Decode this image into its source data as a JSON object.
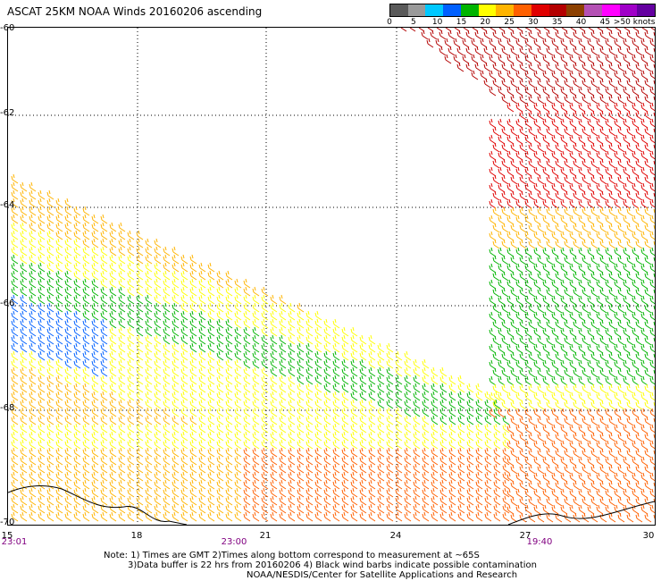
{
  "title": "ASCAT 25KM NOAA Winds 20160206 ascending",
  "legend": {
    "colors": [
      "#5a5a5a",
      "#9a9a9a",
      "#00c8ff",
      "#0060ff",
      "#00b400",
      "#ffff00",
      "#ffb400",
      "#ff6000",
      "#e00000",
      "#b40000",
      "#8c4000",
      "#b450b4",
      "#ff00ff",
      "#a000c8",
      "#6400a0"
    ],
    "labels": [
      "0",
      "5",
      "10",
      "15",
      "20",
      "25",
      "30",
      "35",
      "40",
      "45",
      ">50 knots"
    ]
  },
  "y_axis": {
    "labels": [
      "-60",
      "-62",
      "-64",
      "-66",
      "-68",
      "-70"
    ]
  },
  "x_axis": {
    "labels": [
      "15",
      "18",
      "21",
      "24",
      "27",
      "30"
    ]
  },
  "times": [
    "23:01",
    "23:00",
    "19:40"
  ],
  "notes": [
    "Note: 1) Times are GMT 2)Times along bottom correspond to measurement at ~65S",
    "3)Data buffer is 22 hrs from 20160206 4) Black wind barbs indicate possible contamination",
    "NOAA/NESDIS/Center for Satellite Applications and Research"
  ]
}
